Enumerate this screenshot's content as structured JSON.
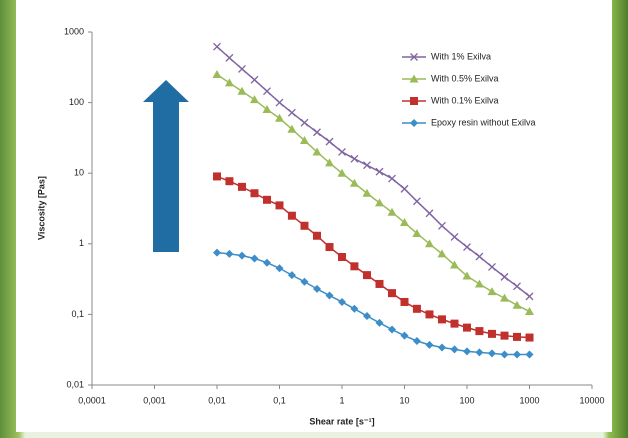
{
  "chart_data": {
    "type": "line",
    "x_label": "Shear rate [s⁻¹]",
    "y_label": "Viscosity [Pas]",
    "xscale": "log",
    "yscale": "log",
    "grid": false,
    "legend": "upper right",
    "xlim": [
      0.0001,
      10000
    ],
    "ylim": [
      0.01,
      1000
    ],
    "xticks": [
      {
        "value": 0.0001,
        "label": "0,0001"
      },
      {
        "value": 0.001,
        "label": "0,001"
      },
      {
        "value": 0.01,
        "label": "0,01"
      },
      {
        "value": 0.1,
        "label": "0,1"
      },
      1,
      10,
      100,
      1000,
      10000
    ],
    "yticks": [
      {
        "value": 0.01,
        "label": "0,01"
      },
      {
        "value": 0.1,
        "label": "0,1"
      },
      1,
      10,
      100,
      1000
    ],
    "x": [
      0.01,
      0.0158,
      0.0251,
      0.0398,
      0.0631,
      0.1,
      0.158,
      0.251,
      0.398,
      0.631,
      1,
      1.58,
      2.51,
      3.98,
      6.31,
      10,
      15.8,
      25.1,
      39.8,
      63.1,
      100,
      158,
      251,
      398,
      631,
      1000
    ],
    "series": [
      {
        "name": "With 1% Exilva",
        "color": "#8064a2",
        "marker": "x",
        "values": [
          620,
          430,
          300,
          210,
          145,
          100,
          72,
          52,
          38,
          28,
          20,
          16,
          13,
          10.5,
          8.4,
          6,
          4,
          2.7,
          1.8,
          1.25,
          0.9,
          0.66,
          0.47,
          0.34,
          0.25,
          0.18
        ]
      },
      {
        "name": "With 0.5% Exilva",
        "color": "#9bbb59",
        "marker": "triangle",
        "values": [
          250,
          190,
          145,
          110,
          80,
          60,
          42,
          29,
          20,
          14,
          10,
          7.2,
          5.2,
          3.8,
          2.8,
          2.0,
          1.4,
          1.0,
          0.72,
          0.5,
          0.35,
          0.27,
          0.21,
          0.17,
          0.135,
          0.11
        ]
      },
      {
        "name": "With 0.1% Exilva",
        "color": "#c0302d",
        "marker": "square",
        "values": [
          9,
          7.7,
          6.4,
          5.2,
          4.2,
          3.5,
          2.5,
          1.8,
          1.3,
          0.9,
          0.65,
          0.48,
          0.36,
          0.27,
          0.2,
          0.15,
          0.12,
          0.1,
          0.085,
          0.074,
          0.065,
          0.058,
          0.053,
          0.05,
          0.048,
          0.047
        ]
      },
      {
        "name": "Epoxy resin without Exilva",
        "color": "#3c8dc8",
        "marker": "diamond",
        "values": [
          0.75,
          0.72,
          0.68,
          0.62,
          0.54,
          0.45,
          0.36,
          0.29,
          0.23,
          0.185,
          0.15,
          0.12,
          0.095,
          0.076,
          0.061,
          0.05,
          0.042,
          0.037,
          0.034,
          0.032,
          0.03,
          0.029,
          0.028,
          0.027,
          0.027,
          0.027
        ]
      }
    ]
  }
}
